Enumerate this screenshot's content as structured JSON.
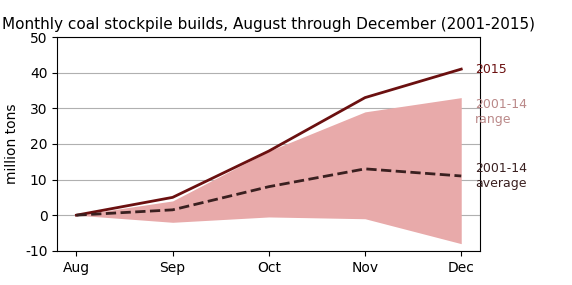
{
  "chart_data": {
    "type": "line",
    "title": "Monthly coal stockpile builds, August through December (2001-2015)",
    "ylabel": "million tons",
    "categories": [
      "Aug",
      "Sep",
      "Oct",
      "Nov",
      "Dec"
    ],
    "series": [
      {
        "name": "2001-14\nrange",
        "type": "band",
        "color": "#e8aaaa",
        "upper": [
          0,
          4,
          18,
          29,
          33
        ],
        "lower": [
          0,
          -2,
          -0.5,
          -1,
          -8
        ]
      },
      {
        "name": "2015",
        "type": "line",
        "color": "#6b1010",
        "line_style": "solid",
        "values": [
          0,
          5,
          18,
          33,
          41
        ]
      },
      {
        "name": "2001-14\naverage",
        "type": "line",
        "color": "#3a2020",
        "line_style": "dashed",
        "values": [
          0,
          1.5,
          8,
          13,
          11
        ]
      }
    ],
    "ylim": [
      -10,
      50
    ],
    "yticks": [
      -10,
      0,
      10,
      20,
      30,
      40,
      50
    ],
    "grid": "y"
  }
}
